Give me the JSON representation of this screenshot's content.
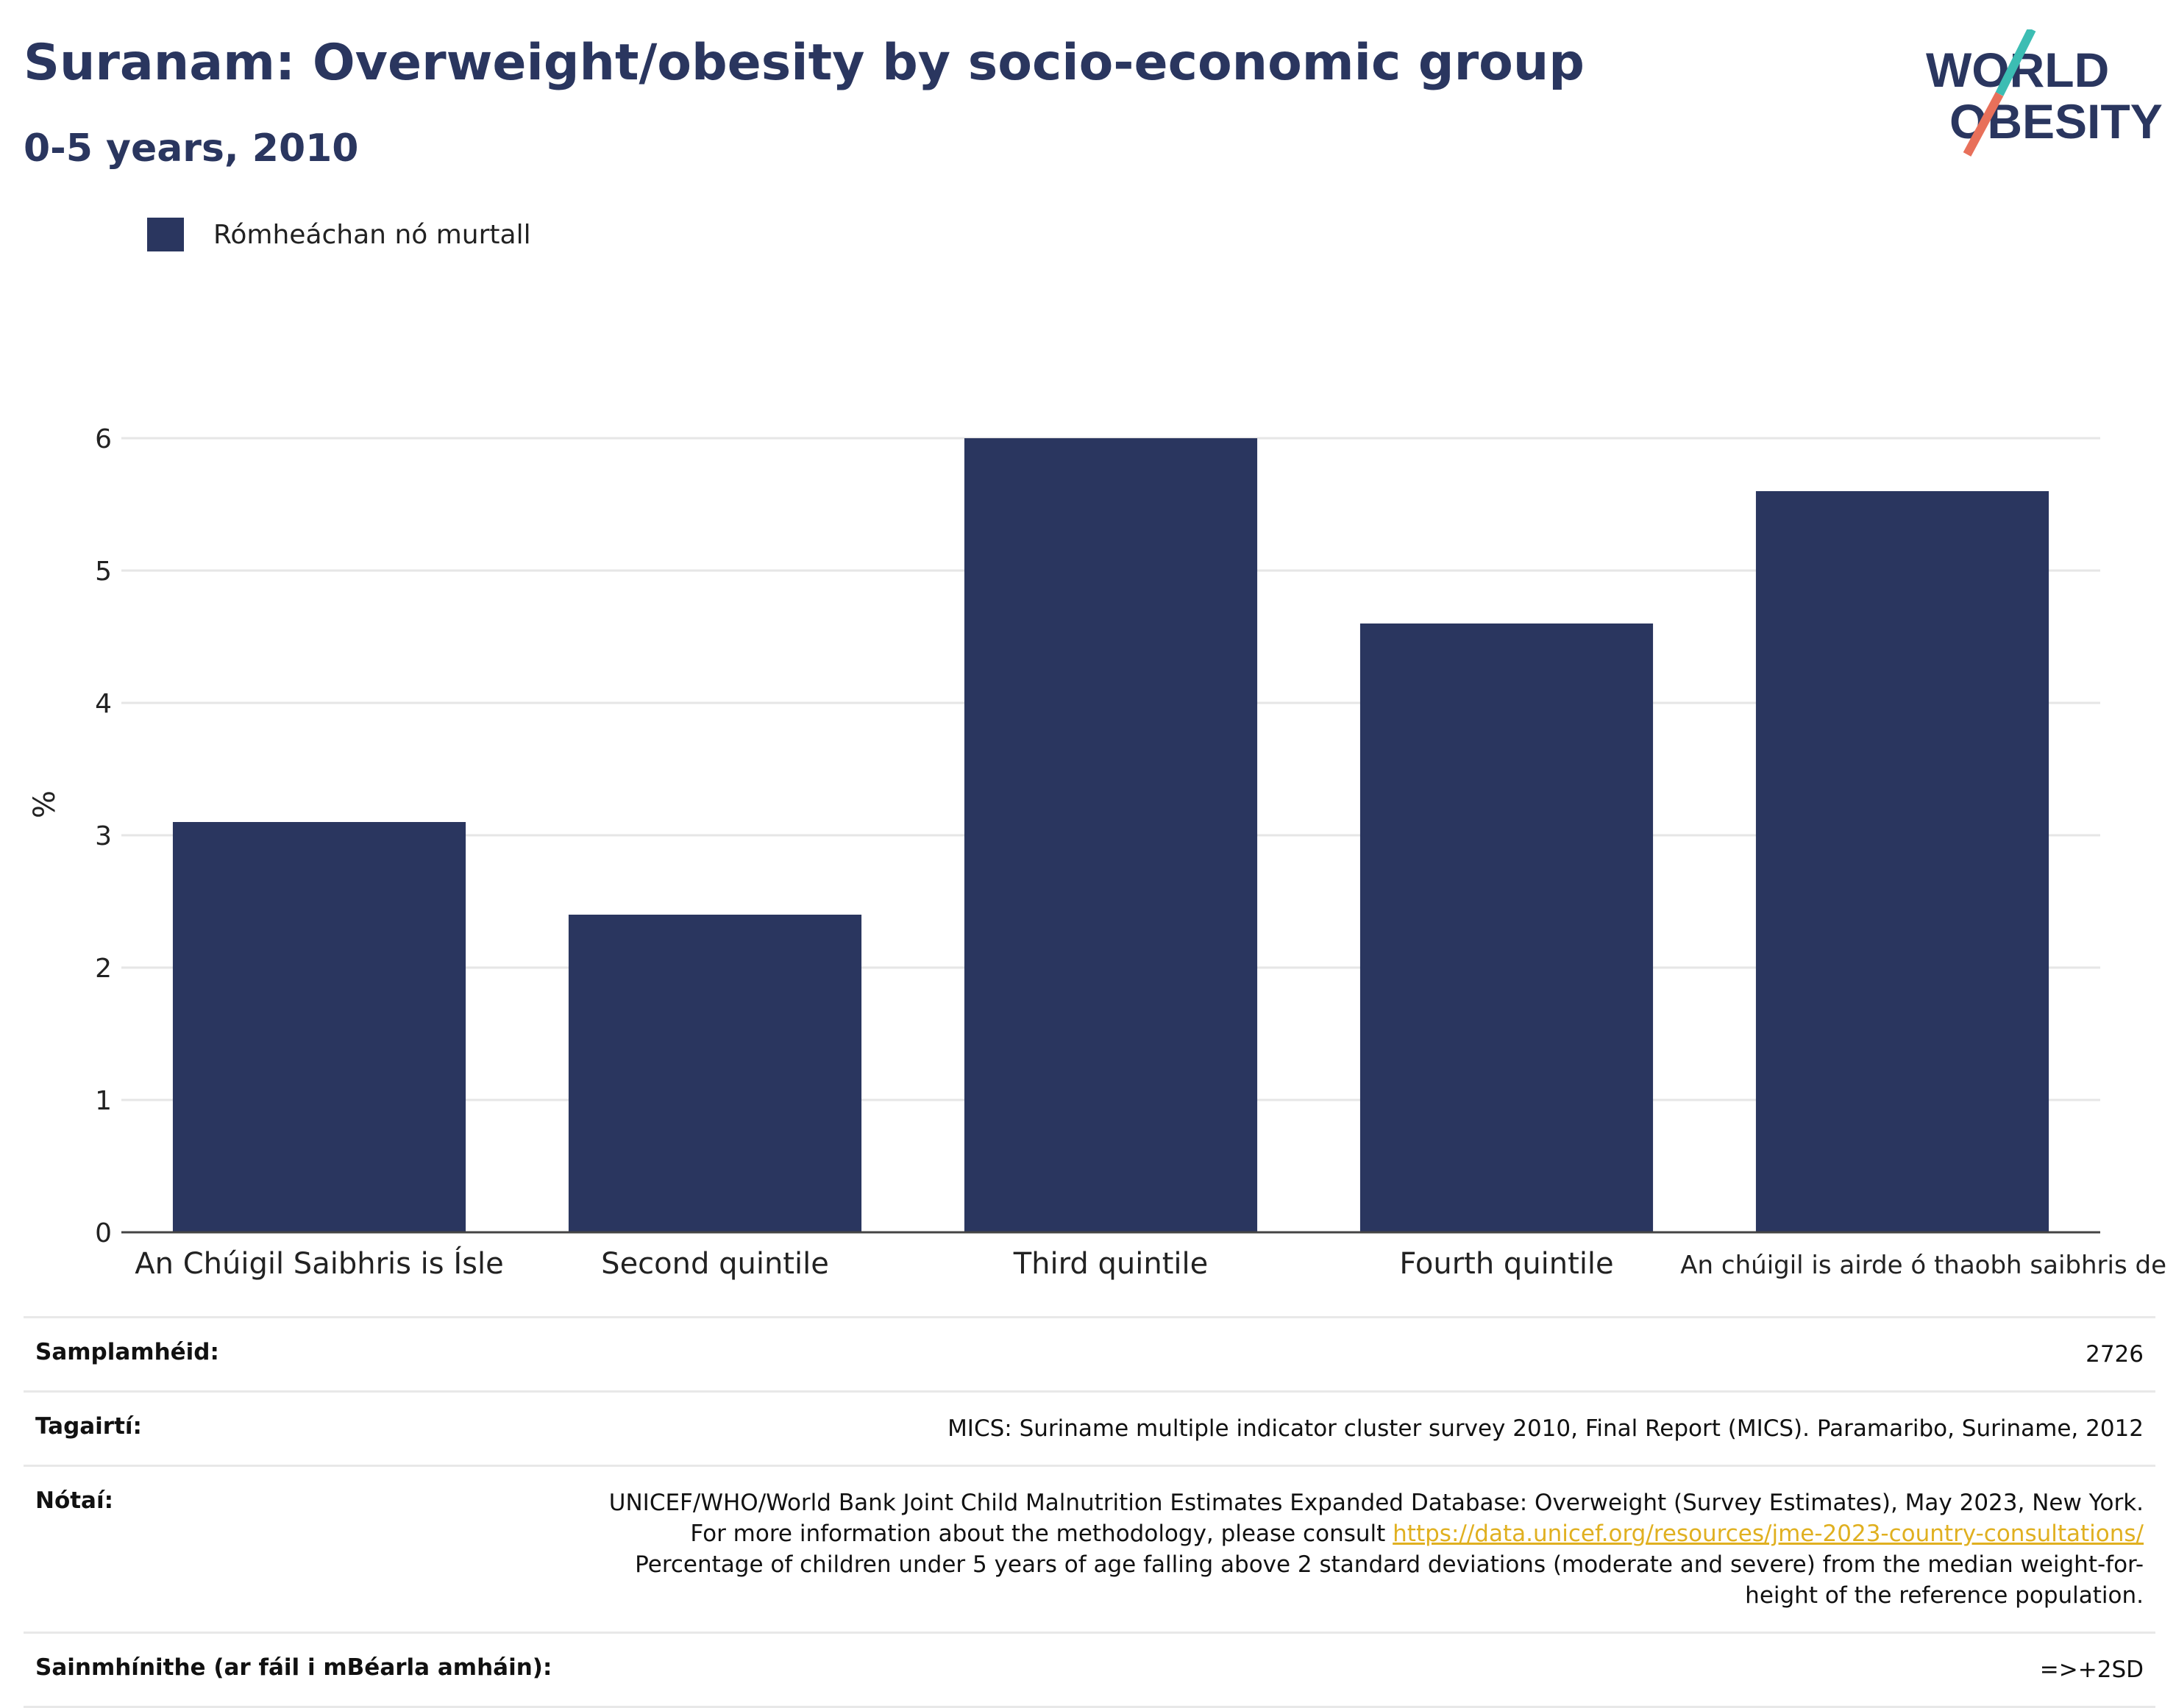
{
  "header": {
    "title": "Suranam: Overweight/obesity by socio-economic group",
    "subtitle": "0-5 years, 2010"
  },
  "logo": {
    "line1": "WORLD",
    "line2": "OBESITY",
    "accent_teal": "#3cbdb3",
    "accent_coral": "#e8705a"
  },
  "chart_data": {
    "type": "bar",
    "categories": [
      "An Chúigil Saibhris is Ísle",
      "Second quintile",
      "Third quintile",
      "Fourth quintile",
      "An chúigil is airde ó thaobh saibhris de"
    ],
    "series": [
      {
        "name": "Rómheáchan nó murtall",
        "values": [
          3.1,
          2.4,
          6.0,
          4.6,
          5.6
        ],
        "color": "#2a365f"
      }
    ],
    "ylabel": "%",
    "ylim": [
      0,
      6.2
    ],
    "yticks": [
      "0",
      "1",
      "2",
      "3",
      "4",
      "5",
      "6"
    ],
    "grid": true,
    "legend_position": "top-left"
  },
  "meta": {
    "sample_label": "Samplamhéid:",
    "sample_value": "2726",
    "references_label": "Tagairtí:",
    "references_value": "MICS: Suriname multiple indicator cluster survey 2010, Final Report (MICS). Paramaribo, Suriname, 2012",
    "notes_label": "Nótaí:",
    "notes_value_1": "UNICEF/WHO/World Bank Joint Child Malnutrition Estimates Expanded Database: Overweight (Survey Estimates), May 2023, New York. For more information about the methodology, please consult",
    "notes_link": "https://data.unicef.org/resources/jme-2023-country-consultations/",
    "notes_value_2": "Percentage of children under 5 years of age falling above 2 standard deviations (moderate and severe) from the median weight-for-height of the reference population.",
    "definitions_label": "Sainmhínithe (ar fáil i mBéarla amháin):",
    "definitions_value": "=>+2SD"
  }
}
